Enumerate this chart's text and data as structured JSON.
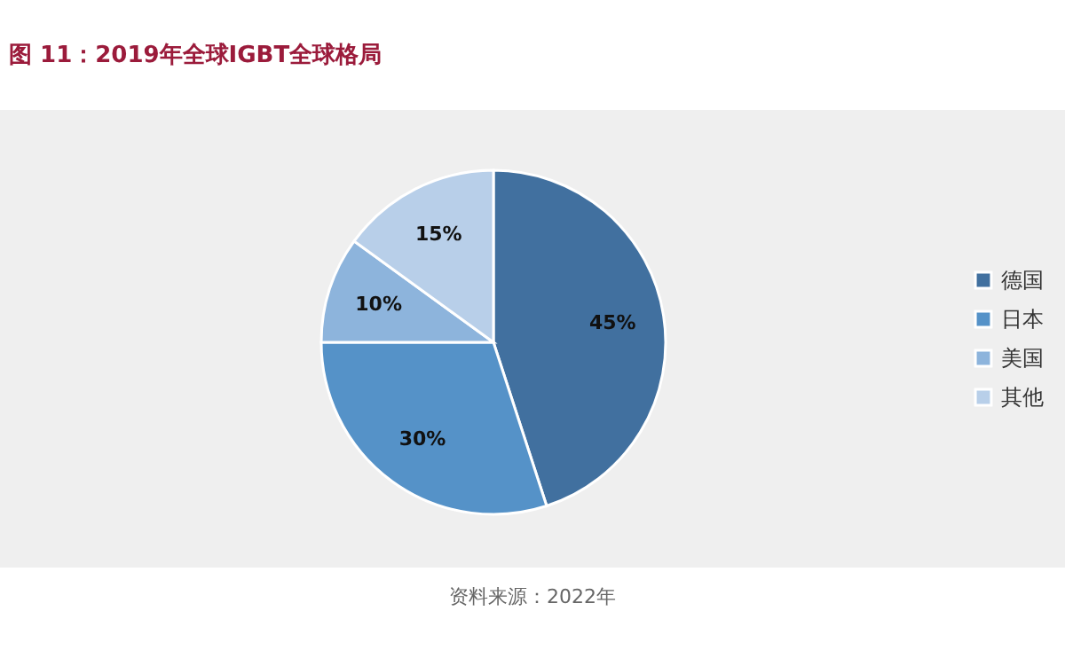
{
  "chart_data": {
    "type": "pie",
    "title": "图 11：2019年全球IGBT全球格局",
    "categories": [
      "德国",
      "日本",
      "美国",
      "其他"
    ],
    "values": [
      45,
      30,
      10,
      15
    ],
    "colors": [
      "#41709f",
      "#5592c8",
      "#8db4dc",
      "#b8cfe9"
    ],
    "value_labels": [
      "45%",
      "30%",
      "10%",
      "15%"
    ],
    "legend": "right",
    "annotations": [
      "资料来源：2022年"
    ]
  }
}
